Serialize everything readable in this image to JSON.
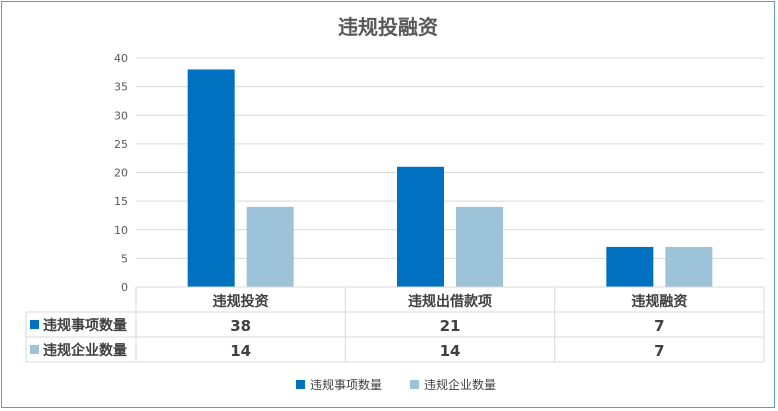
{
  "chart_data": {
    "type": "bar",
    "title": "违规投融资",
    "categories": [
      "违规投资",
      "违规出借款项",
      "违规融资"
    ],
    "series": [
      {
        "name": "违规事项数量",
        "values": [
          38,
          21,
          7
        ],
        "color": "#0070c0"
      },
      {
        "name": "违规企业数量",
        "values": [
          14,
          14,
          7
        ],
        "color": "#9dc3d9"
      }
    ],
    "ylim": [
      0,
      40
    ],
    "yticks": [
      0,
      5,
      10,
      15,
      20,
      25,
      30,
      35,
      40
    ],
    "grid": true,
    "legend_position": "bottom",
    "data_table": true
  }
}
